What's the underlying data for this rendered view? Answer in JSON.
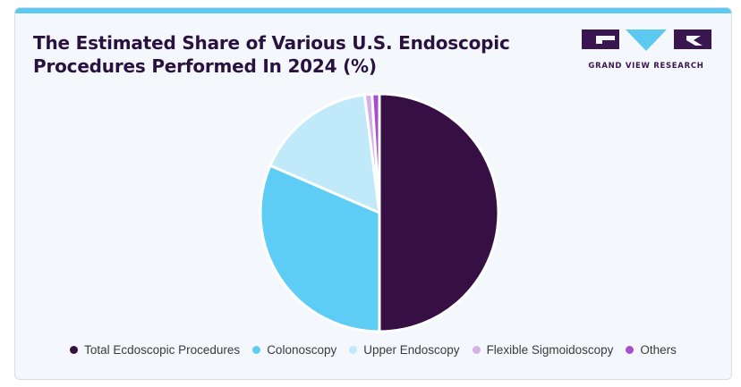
{
  "title_lines": [
    "The Estimated Share of Various U.S. Endoscopic",
    "Procedures Performed In 2024 (%)"
  ],
  "logo": {
    "text": "GRAND VIEW RESEARCH",
    "color": "#3a1650",
    "accent": "#5ccaf0"
  },
  "colors": {
    "top_bar": "#5ccaf0",
    "background": "#f4f8fc"
  },
  "chart_data": {
    "type": "pie",
    "title": "The Estimated Share of Various U.S. Endoscopic Procedures Performed In 2024 (%)",
    "legend_position": "bottom",
    "labels": [
      "Total Ecdoscopic Procedures",
      "Colonoscopy",
      "Upper Endoscopy",
      "Flexible Sigmoidoscopy",
      "Others"
    ],
    "values": [
      50.0,
      31.5,
      16.5,
      1.0,
      1.0
    ],
    "colors": [
      "#361044",
      "#5ecdf5",
      "#c0e9fa",
      "#d6aee8",
      "#a64ed0"
    ]
  }
}
